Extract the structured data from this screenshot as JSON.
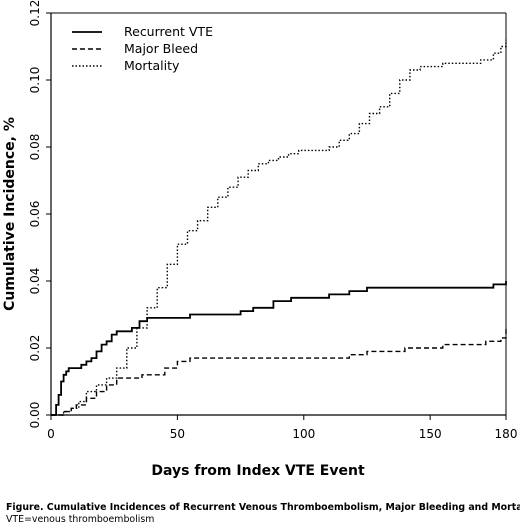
{
  "caption": {
    "title": "Figure. Cumulative Incidences of Recurrent Venous Thromboembolism, Major Bleeding and Mortality",
    "note": "VTE=venous thromboembolism"
  },
  "chart_data": {
    "type": "line",
    "title": "",
    "xlabel": "Days from Index VTE Event",
    "ylabel": "Cumulative Incidence, %",
    "xlim": [
      0,
      180
    ],
    "ylim": [
      0,
      0.12
    ],
    "xticks": [
      0,
      50,
      100,
      150,
      180
    ],
    "yticks": [
      0.0,
      0.02,
      0.04,
      0.06,
      0.08,
      0.1,
      0.12
    ],
    "xtick_labels": [
      "0",
      "50",
      "100",
      "150",
      "180"
    ],
    "ytick_labels": [
      "0.00",
      "0.02",
      "0.04",
      "0.06",
      "0.08",
      "0.10",
      "0.12"
    ],
    "grid": false,
    "legend_position": "top-left",
    "series": [
      {
        "name": "Recurrent VTE",
        "style": "solid",
        "color": "#000000",
        "x": [
          0,
          2,
          3,
          4,
          5,
          6,
          7,
          9,
          12,
          14,
          16,
          18,
          20,
          22,
          24,
          26,
          29,
          32,
          35,
          38,
          42,
          55,
          60,
          75,
          80,
          88,
          95,
          105,
          110,
          118,
          125,
          140,
          150,
          175,
          180
        ],
        "y": [
          0,
          0.003,
          0.006,
          0.01,
          0.012,
          0.013,
          0.014,
          0.014,
          0.015,
          0.016,
          0.017,
          0.019,
          0.021,
          0.022,
          0.024,
          0.025,
          0.025,
          0.026,
          0.028,
          0.029,
          0.029,
          0.03,
          0.03,
          0.031,
          0.032,
          0.034,
          0.035,
          0.035,
          0.036,
          0.037,
          0.038,
          0.038,
          0.038,
          0.039,
          0.04
        ]
      },
      {
        "name": "Major Bleed",
        "style": "dashed",
        "color": "#000000",
        "x": [
          0,
          5,
          8,
          10,
          14,
          18,
          22,
          26,
          28,
          32,
          36,
          40,
          45,
          50,
          55,
          65,
          75,
          100,
          118,
          125,
          140,
          155,
          165,
          172,
          178,
          180
        ],
        "y": [
          0,
          0.001,
          0.002,
          0.003,
          0.005,
          0.007,
          0.009,
          0.011,
          0.011,
          0.011,
          0.012,
          0.012,
          0.014,
          0.016,
          0.017,
          0.017,
          0.017,
          0.017,
          0.018,
          0.019,
          0.02,
          0.021,
          0.021,
          0.022,
          0.023,
          0.026
        ]
      },
      {
        "name": "Mortality",
        "style": "dotted",
        "color": "#000000",
        "x": [
          0,
          5,
          8,
          11,
          14,
          18,
          22,
          26,
          30,
          34,
          38,
          42,
          46,
          50,
          54,
          58,
          62,
          66,
          70,
          74,
          78,
          82,
          86,
          90,
          94,
          98,
          102,
          106,
          110,
          114,
          118,
          122,
          126,
          130,
          134,
          138,
          142,
          146,
          150,
          155,
          160,
          165,
          170,
          175,
          178,
          180
        ],
        "y": [
          0,
          0.001,
          0.002,
          0.004,
          0.007,
          0.009,
          0.011,
          0.014,
          0.02,
          0.026,
          0.032,
          0.038,
          0.045,
          0.051,
          0.055,
          0.058,
          0.062,
          0.065,
          0.068,
          0.071,
          0.073,
          0.075,
          0.076,
          0.077,
          0.078,
          0.079,
          0.079,
          0.079,
          0.08,
          0.082,
          0.084,
          0.087,
          0.09,
          0.092,
          0.096,
          0.1,
          0.103,
          0.104,
          0.104,
          0.105,
          0.105,
          0.105,
          0.106,
          0.108,
          0.11,
          0.112
        ]
      }
    ]
  }
}
